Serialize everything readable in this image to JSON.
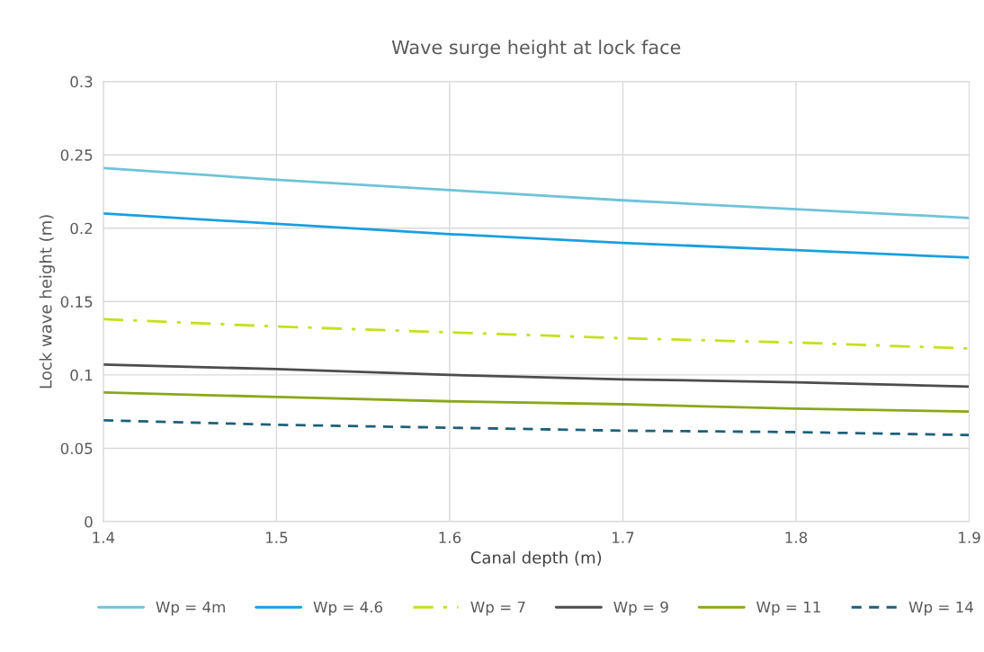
{
  "chart_data": {
    "type": "line",
    "title": "Wave surge height at lock face",
    "xlabel": "Canal depth (m)",
    "ylabel": "Lock wave height (m)",
    "x": [
      1.4,
      1.5,
      1.6,
      1.7,
      1.8,
      1.9
    ],
    "series": [
      {
        "name": "Wp = 4m",
        "color": "#6fc3d8",
        "line_style": "solid",
        "values": [
          0.241,
          0.233,
          0.226,
          0.219,
          0.213,
          0.207
        ]
      },
      {
        "name": "Wp = 4.6",
        "color": "#1a9fe0",
        "line_style": "solid",
        "values": [
          0.21,
          0.203,
          0.196,
          0.19,
          0.185,
          0.18
        ]
      },
      {
        "name": "Wp = 7",
        "color": "#c5e01e",
        "line_style": "dashdot",
        "values": [
          0.138,
          0.133,
          0.129,
          0.125,
          0.122,
          0.118
        ]
      },
      {
        "name": "Wp = 9",
        "color": "#4d4d4f",
        "line_style": "solid",
        "values": [
          0.107,
          0.104,
          0.1,
          0.097,
          0.095,
          0.092
        ]
      },
      {
        "name": "Wp = 11",
        "color": "#8aa81a",
        "line_style": "solid",
        "values": [
          0.088,
          0.085,
          0.082,
          0.08,
          0.077,
          0.075
        ]
      },
      {
        "name": "Wp = 14",
        "color": "#1f6078",
        "line_style": "dashed",
        "values": [
          0.069,
          0.066,
          0.064,
          0.062,
          0.061,
          0.059
        ]
      }
    ],
    "xlim": [
      1.4,
      1.9
    ],
    "xticks": [
      1.4,
      1.5,
      1.6,
      1.7,
      1.8,
      1.9
    ],
    "ylim": [
      0,
      0.3
    ],
    "yticks": [
      0,
      0.05,
      0.1,
      0.15,
      0.2,
      0.25,
      0.3
    ],
    "grid": true,
    "legend": "bottom",
    "marker": "none"
  }
}
